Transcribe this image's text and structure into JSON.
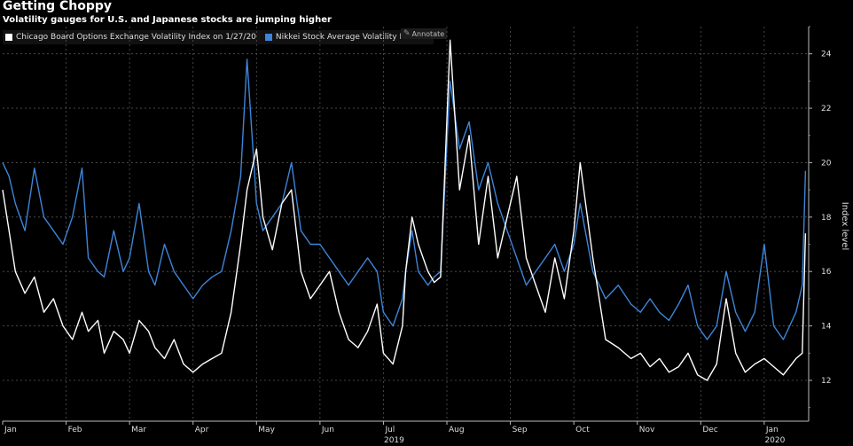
{
  "chart_data": {
    "type": "line",
    "title": "Getting Choppy",
    "subtitle": "Volatility gauges for U.S. and Japanese stocks are jumping higher",
    "ylabel": "Index level",
    "ylim": [
      10.5,
      25
    ],
    "yticks": [
      12,
      14,
      16,
      18,
      20,
      22,
      24
    ],
    "xlim": [
      0,
      12.7
    ],
    "x_ticks": [
      {
        "label": "Jan",
        "x": 0.0
      },
      {
        "label": "Feb",
        "x": 1.0
      },
      {
        "label": "Mar",
        "x": 2.0
      },
      {
        "label": "Apr",
        "x": 3.0
      },
      {
        "label": "May",
        "x": 4.0
      },
      {
        "label": "Jun",
        "x": 5.0
      },
      {
        "label": "Jul",
        "x": 6.0
      },
      {
        "label": "Aug",
        "x": 7.0
      },
      {
        "label": "Sep",
        "x": 8.0
      },
      {
        "label": "Oct",
        "x": 9.0
      },
      {
        "label": "Nov",
        "x": 10.0
      },
      {
        "label": "Dec",
        "x": 11.0
      },
      {
        "label": "Jan",
        "x": 12.0
      }
    ],
    "year_labels": [
      {
        "label": "2019",
        "x": 6.0
      },
      {
        "label": "2020",
        "x": 12.0
      }
    ],
    "annotate_label": "Annotate",
    "series": [
      {
        "name": "Chicago Board Options Exchange Volatility Index  on 1/27/20",
        "color": "#ffffff",
        "x": [
          0.0,
          0.1,
          0.2,
          0.35,
          0.5,
          0.65,
          0.8,
          0.95,
          1.1,
          1.25,
          1.35,
          1.5,
          1.6,
          1.75,
          1.9,
          2.0,
          2.15,
          2.3,
          2.4,
          2.55,
          2.7,
          2.85,
          3.0,
          3.15,
          3.3,
          3.45,
          3.6,
          3.75,
          3.85,
          4.0,
          4.1,
          4.25,
          4.4,
          4.55,
          4.7,
          4.85,
          5.0,
          5.15,
          5.3,
          5.45,
          5.6,
          5.75,
          5.9,
          6.0,
          6.15,
          6.3,
          6.35,
          6.45,
          6.55,
          6.7,
          6.8,
          6.9,
          7.05,
          7.2,
          7.35,
          7.5,
          7.65,
          7.8,
          7.95,
          8.1,
          8.25,
          8.4,
          8.55,
          8.7,
          8.85,
          9.0,
          9.1,
          9.3,
          9.5,
          9.7,
          9.9,
          10.05,
          10.2,
          10.35,
          10.5,
          10.65,
          10.8,
          10.95,
          11.1,
          11.25,
          11.4,
          11.55,
          11.7,
          11.85,
          12.0,
          12.15,
          12.3,
          12.5,
          12.6,
          12.65
        ],
        "values": [
          19.0,
          17.5,
          16.0,
          15.2,
          15.8,
          14.5,
          15.0,
          14.0,
          13.5,
          14.5,
          13.8,
          14.2,
          13.0,
          13.8,
          13.5,
          13.0,
          14.2,
          13.8,
          13.2,
          12.8,
          13.5,
          12.6,
          12.3,
          12.6,
          12.8,
          13.0,
          14.5,
          17.0,
          19.0,
          20.5,
          18.0,
          16.8,
          18.5,
          19.0,
          16.0,
          15.0,
          15.5,
          16.0,
          14.5,
          13.5,
          13.2,
          13.8,
          14.8,
          13.0,
          12.6,
          14.0,
          16.0,
          18.0,
          17.0,
          16.0,
          15.6,
          15.8,
          24.5,
          19.0,
          21.0,
          17.0,
          19.5,
          16.5,
          18.0,
          19.5,
          16.5,
          15.5,
          14.5,
          16.5,
          15.0,
          17.5,
          20.0,
          16.5,
          13.5,
          13.2,
          12.8,
          13.0,
          12.5,
          12.8,
          12.3,
          12.5,
          13.0,
          12.2,
          12.0,
          12.6,
          15.0,
          13.0,
          12.3,
          12.6,
          12.8,
          12.5,
          12.2,
          12.8,
          13.0,
          17.4
        ]
      },
      {
        "name": "Nikkei Stock Average Volatility Index",
        "color": "#3d85d8",
        "x": [
          0.0,
          0.1,
          0.2,
          0.35,
          0.5,
          0.65,
          0.8,
          0.95,
          1.1,
          1.25,
          1.35,
          1.5,
          1.6,
          1.75,
          1.9,
          2.0,
          2.15,
          2.3,
          2.4,
          2.55,
          2.7,
          2.85,
          3.0,
          3.15,
          3.3,
          3.45,
          3.6,
          3.75,
          3.85,
          4.0,
          4.1,
          4.25,
          4.4,
          4.55,
          4.7,
          4.85,
          5.0,
          5.15,
          5.3,
          5.45,
          5.6,
          5.75,
          5.9,
          6.0,
          6.15,
          6.3,
          6.35,
          6.45,
          6.55,
          6.7,
          6.8,
          6.9,
          7.05,
          7.2,
          7.35,
          7.5,
          7.65,
          7.8,
          7.95,
          8.1,
          8.25,
          8.4,
          8.55,
          8.7,
          8.85,
          9.0,
          9.1,
          9.3,
          9.5,
          9.7,
          9.9,
          10.05,
          10.2,
          10.35,
          10.5,
          10.65,
          10.8,
          10.95,
          11.1,
          11.25,
          11.4,
          11.55,
          11.7,
          11.85,
          12.0,
          12.15,
          12.3,
          12.5,
          12.6,
          12.65
        ],
        "values": [
          20.0,
          19.5,
          18.5,
          17.5,
          19.8,
          18.0,
          17.5,
          17.0,
          18.0,
          19.8,
          16.5,
          16.0,
          15.8,
          17.5,
          16.0,
          16.5,
          18.5,
          16.0,
          15.5,
          17.0,
          16.0,
          15.5,
          15.0,
          15.5,
          15.8,
          16.0,
          17.5,
          19.5,
          23.8,
          18.5,
          17.5,
          18.0,
          18.5,
          20.0,
          17.5,
          17.0,
          17.0,
          16.5,
          16.0,
          15.5,
          16.0,
          16.5,
          16.0,
          14.5,
          14.0,
          15.0,
          16.0,
          17.5,
          16.0,
          15.5,
          15.8,
          16.0,
          23.0,
          20.5,
          21.5,
          19.0,
          20.0,
          18.5,
          17.5,
          16.5,
          15.5,
          16.0,
          16.5,
          17.0,
          16.0,
          17.0,
          18.5,
          16.0,
          15.0,
          15.5,
          14.8,
          14.5,
          15.0,
          14.5,
          14.2,
          14.8,
          15.5,
          14.0,
          13.5,
          14.0,
          16.0,
          14.5,
          13.8,
          14.5,
          17.0,
          14.0,
          13.5,
          14.5,
          15.5,
          19.7
        ]
      }
    ]
  }
}
